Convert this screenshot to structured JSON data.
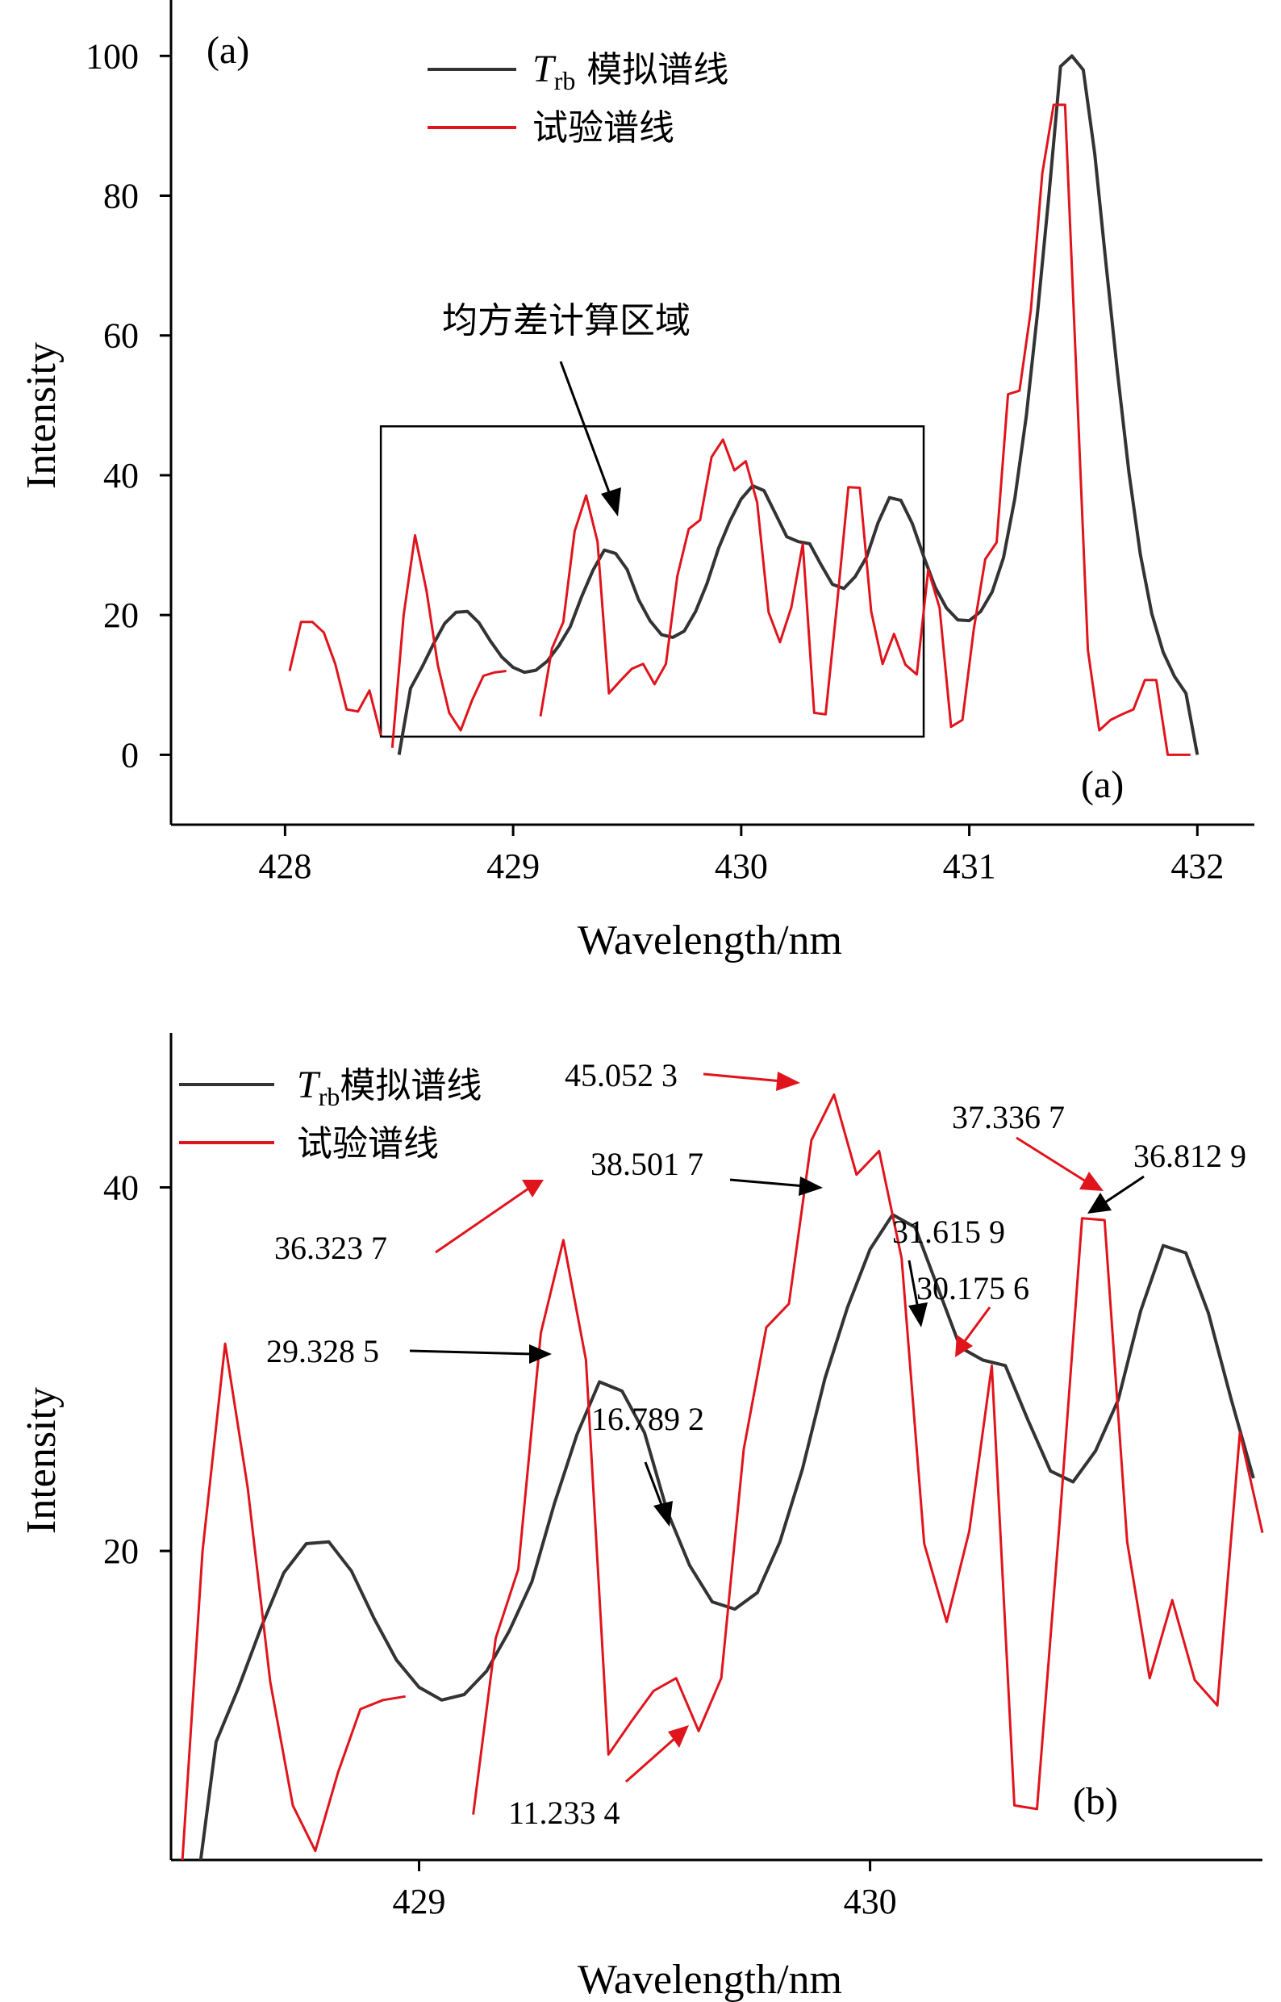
{
  "chart_data": [
    {
      "type": "line",
      "panel_label": "(a)",
      "panel_label_inner": "(a)",
      "xlabel": "Wavelength/nm",
      "ylabel": "Intensity",
      "xlim": [
        427.5,
        432.25
      ],
      "ylim": [
        -10,
        108
      ],
      "xticks": [
        428,
        429,
        430,
        431,
        432
      ],
      "yticks": [
        0,
        20,
        40,
        60,
        80,
        100
      ],
      "legend": [
        {
          "label_main": "T",
          "label_sub": "rb",
          "label_rest": " 模拟谱线",
          "color": "#333333"
        },
        {
          "label_main": "试验谱线",
          "label_sub": "",
          "label_rest": "",
          "color": "#e0141c"
        }
      ],
      "region_label": "均方差计算区域",
      "region": {
        "x0": 428.42,
        "x1": 430.8,
        "y0": 2.6,
        "y1": 47
      },
      "series": [
        {
          "name": "模拟谱线",
          "color": "#333333",
          "x": [
            428.5,
            428.55,
            428.6,
            428.65,
            428.7,
            428.75,
            428.8,
            428.85,
            428.9,
            428.95,
            429.0,
            429.05,
            429.1,
            429.15,
            429.2,
            429.25,
            429.3,
            429.35,
            429.4,
            429.45,
            429.5,
            429.55,
            429.6,
            429.65,
            429.7,
            429.75,
            429.8,
            429.85,
            429.9,
            429.95,
            430.0,
            430.05,
            430.1,
            430.15,
            430.2,
            430.25,
            430.3,
            430.35,
            430.4,
            430.45,
            430.5,
            430.55,
            430.6,
            430.65,
            430.7,
            430.75,
            430.8,
            430.85,
            430.9,
            430.95,
            431.0,
            431.05,
            431.1,
            431.15,
            431.2,
            431.25,
            431.3,
            431.35,
            431.4,
            431.45,
            431.5,
            431.55,
            431.6,
            431.65,
            431.7,
            431.75,
            431.8,
            431.85,
            431.9,
            431.95,
            432.0
          ],
          "y": [
            0,
            9.5,
            12.5,
            15.8,
            18.8,
            20.4,
            20.5,
            18.9,
            16.3,
            14,
            12.5,
            11.8,
            12.1,
            13.4,
            15.6,
            18.3,
            22.6,
            26.4,
            29.3,
            28.8,
            26.5,
            22.2,
            19.2,
            17.2,
            16.8,
            17.7,
            20.5,
            24.5,
            29.5,
            33.4,
            36.6,
            38.5,
            37.8,
            34.5,
            31.2,
            30.5,
            30.2,
            27.2,
            24.4,
            23.8,
            25.5,
            28.3,
            33.2,
            36.8,
            36.4,
            33.1,
            28.4,
            24,
            21,
            19.3,
            19.2,
            20.5,
            23.3,
            28.2,
            36.7,
            48.5,
            63.5,
            80.3,
            98.5,
            100,
            98,
            86,
            70.1,
            54.6,
            40.4,
            28.7,
            20.2,
            14.7,
            11.2,
            8.8,
            0
          ]
        },
        {
          "name": "试验谱线",
          "color": "#e0141c",
          "segments": [
            {
              "x": [
                428.02,
                428.07,
                428.12,
                428.17,
                428.22,
                428.27,
                428.32,
                428.37,
                428.42
              ],
              "y": [
                12,
                19,
                19,
                17.5,
                13,
                6.5,
                6.2,
                9.2,
                2.8
              ]
            },
            {
              "x": [
                428.47,
                428.52,
                428.57,
                428.62,
                428.67,
                428.72,
                428.77,
                428.82,
                428.87,
                428.92,
                428.97
              ],
              "y": [
                1,
                20,
                31.4,
                23.5,
                12.8,
                6,
                3.5,
                7.8,
                11.3,
                11.8,
                12
              ]
            },
            {
              "x": [
                429.12,
                429.17,
                429.22,
                429.27,
                429.32,
                429.37,
                429.42,
                429.47,
                429.52,
                429.57,
                429.62,
                429.67,
                429.72,
                429.77,
                429.82,
                429.87,
                429.92,
                429.97,
                430.02,
                430.07,
                430.12,
                430.17,
                430.22,
                430.27,
                430.32,
                430.37,
                430.42,
                430.47,
                430.52,
                430.57,
                430.62,
                430.67,
                430.72,
                430.77,
                430.82,
                430.87,
                430.92,
                430.97,
                431.02,
                431.07,
                431.12,
                431.17,
                431.22,
                431.27,
                431.32,
                431.37,
                431.42,
                431.47,
                431.52,
                431.57,
                431.62,
                431.67,
                431.72,
                431.77,
                431.82,
                431.87,
                431.92,
                431.97
              ],
              "y": [
                5.5,
                15.2,
                19,
                32,
                37.1,
                30.5,
                8.8,
                10.6,
                12.3,
                13,
                10.1,
                13,
                25.6,
                32.3,
                33.6,
                42.6,
                45.1,
                40.7,
                42,
                36.1,
                20.4,
                16.1,
                21.1,
                30.2,
                6,
                5.8,
                21.5,
                38.3,
                38.2,
                20.5,
                13,
                17.3,
                12.9,
                11.5,
                26.5,
                21,
                4,
                5,
                18,
                28,
                30.4,
                51.6,
                52.1,
                63.6,
                83.2,
                93,
                93,
                54,
                15,
                3.5,
                5,
                5.8,
                6.5,
                10.7,
                10.7,
                0,
                0,
                0
              ]
            }
          ]
        }
      ]
    },
    {
      "type": "line",
      "panel_label": "(b)",
      "xlabel": "Wavelength/nm",
      "ylabel": "Intensity",
      "xlim": [
        428.45,
        430.87
      ],
      "ylim": [
        3,
        48.5
      ],
      "xticks": [
        429,
        430
      ],
      "yticks": [
        20,
        40
      ],
      "legend": [
        {
          "label_main": "T",
          "label_sub": "rb",
          "label_rest": "模拟谱线",
          "color": "#333333"
        },
        {
          "label_main": "试验谱线",
          "label_sub": "",
          "label_rest": "",
          "color": "#e0141c"
        }
      ],
      "annotations": [
        {
          "text": "45.052 3",
          "color": "#e0141c",
          "x": 429.82,
          "y": 45.05
        },
        {
          "text": "38.501 7",
          "color": "#000000",
          "x": 429.9,
          "y": 38.5
        },
        {
          "text": "36.323 7",
          "color": "#e0141c",
          "x": 429.27,
          "y": 37.1
        },
        {
          "text": "29.328 5",
          "color": "#000000",
          "x": 429.27,
          "y": 29.3
        },
        {
          "text": "16.789 2",
          "color": "#000000",
          "x": 429.52,
          "y": 16.8
        },
        {
          "text": "11.233 4",
          "color": "#e0141c",
          "x": 429.57,
          "y": 10.1
        },
        {
          "text": "31.615 9",
          "color": "#000000",
          "x": 430.12,
          "y": 30.5
        },
        {
          "text": "30.175 6",
          "color": "#e0141c",
          "x": 430.17,
          "y": 29.3
        },
        {
          "text": "37.336 7",
          "color": "#e0141c",
          "x": 430.52,
          "y": 38.3
        },
        {
          "text": "36.812 9",
          "color": "#000000",
          "x": 430.55,
          "y": 36.8
        }
      ],
      "series": [
        {
          "name": "模拟谱线",
          "color": "#333333",
          "x": [
            428.5,
            428.55,
            428.6,
            428.65,
            428.7,
            428.75,
            428.8,
            428.85,
            428.9,
            428.95,
            429.0,
            429.05,
            429.1,
            429.15,
            429.2,
            429.25,
            429.3,
            429.35,
            429.4,
            429.45,
            429.5,
            429.55,
            429.6,
            429.65,
            429.7,
            429.75,
            429.8,
            429.85,
            429.9,
            429.95,
            430.0,
            430.05,
            430.1,
            430.15,
            430.2,
            430.25,
            430.3,
            430.35,
            430.4,
            430.45,
            430.5,
            430.55,
            430.6,
            430.65,
            430.7,
            430.75,
            430.8,
            430.85
          ],
          "y": [
            0,
            9.5,
            12.5,
            15.8,
            18.8,
            20.4,
            20.5,
            18.9,
            16.3,
            14,
            12.5,
            11.8,
            12.1,
            13.4,
            15.6,
            18.3,
            22.6,
            26.4,
            29.3,
            28.8,
            26.5,
            22.2,
            19.2,
            17.2,
            16.8,
            17.7,
            20.5,
            24.5,
            29.5,
            33.4,
            36.6,
            38.5,
            37.8,
            34.5,
            31.2,
            30.5,
            30.2,
            27.2,
            24.4,
            23.8,
            25.5,
            28.3,
            33.2,
            36.8,
            36.4,
            33.1,
            28.4,
            24
          ]
        },
        {
          "name": "试验谱线",
          "color": "#e0141c",
          "segments": [
            {
              "x": [
                428.47,
                428.52,
                428.57,
                428.62,
                428.67,
                428.72,
                428.77,
                428.82,
                428.87,
                428.92,
                428.97
              ],
              "y": [
                1,
                20,
                31.4,
                23.5,
                12.8,
                6,
                3.5,
                7.8,
                11.3,
                11.8,
                12
              ]
            },
            {
              "x": [
                429.12,
                429.17,
                429.22,
                429.27,
                429.32,
                429.37,
                429.42,
                429.47,
                429.52,
                429.57,
                429.62,
                429.67,
                429.72,
                429.77,
                429.82,
                429.87,
                429.92,
                429.97,
                430.02,
                430.07,
                430.12,
                430.17,
                430.22,
                430.27,
                430.32,
                430.37,
                430.42,
                430.47,
                430.52,
                430.57,
                430.62,
                430.67,
                430.72,
                430.77,
                430.82,
                430.87
              ],
              "y": [
                5.5,
                15.2,
                19,
                32,
                37.1,
                30.5,
                8.8,
                10.6,
                12.3,
                13,
                10.1,
                13,
                25.6,
                32.3,
                33.6,
                42.6,
                45.1,
                40.7,
                42,
                36.1,
                20.4,
                16.1,
                21.1,
                30.2,
                6,
                5.8,
                21.5,
                38.3,
                38.2,
                20.5,
                13,
                17.3,
                12.9,
                11.5,
                26.5,
                21
              ]
            }
          ]
        }
      ]
    }
  ]
}
